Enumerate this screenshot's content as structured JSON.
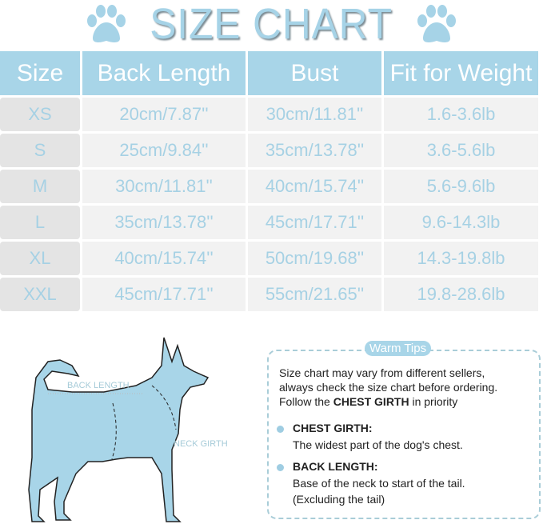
{
  "title": "SIZE CHART",
  "colors": {
    "accent": "#a8d5e8",
    "text_blue": "#a6d1e4",
    "row_bg": "#f2f2f2"
  },
  "icons": [
    "paw-icon",
    "paw-icon"
  ],
  "table": {
    "headers": [
      "Size",
      "Back Length",
      "Bust",
      "Fit for Weight"
    ],
    "rows": [
      [
        "XS",
        "20cm/7.87''",
        "30cm/11.81''",
        "1.6-3.6lb"
      ],
      [
        "S",
        "25cm/9.84''",
        "35cm/13.78''",
        "3.6-5.6lb"
      ],
      [
        "M",
        "30cm/11.81''",
        "40cm/15.74''",
        "5.6-9.6lb"
      ],
      [
        "L",
        "35cm/13.78''",
        "45cm/17.71''",
        "9.6-14.3lb"
      ],
      [
        "XL",
        "40cm/15.74''",
        "50cm/19.68''",
        "14.3-19.8lb"
      ],
      [
        "XXL",
        "45cm/17.71''",
        "55cm/21.65''",
        "19.8-28.6lb"
      ]
    ]
  },
  "diagram": {
    "back_length_label": "BACK LENGTH",
    "neck_girth_label": "NECK GIRTH"
  },
  "tips": {
    "title": "Warm Tips",
    "line1": "Size chart may vary from different sellers,",
    "line2": "always check the size chart before ordering.",
    "line3_pre": "Follow the ",
    "line3_bold": "CHEST GIRTH",
    "line3_post": " in priority",
    "items": [
      {
        "heading": "CHEST GIRTH:",
        "desc1": "The widest part of the dog's chest.",
        "desc2": ""
      },
      {
        "heading": "BACK LENGTH:",
        "desc1": "Base of the neck to start of the tail.",
        "desc2": "(Excluding the tail)"
      }
    ]
  }
}
